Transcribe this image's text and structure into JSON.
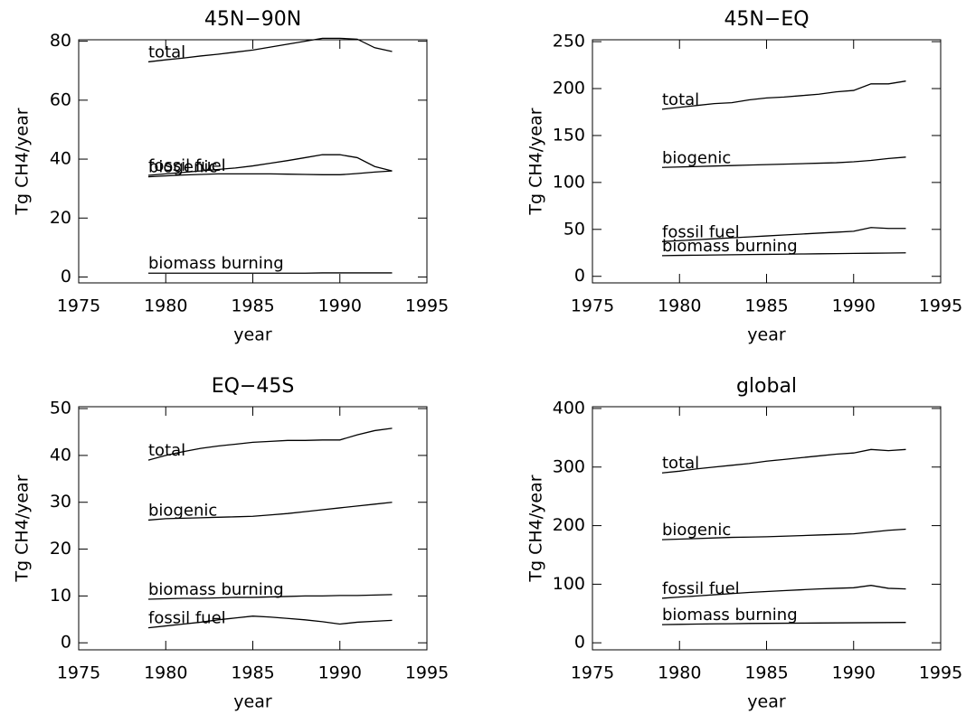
{
  "chart_data": [
    {
      "type": "line",
      "title": "45N−90N",
      "xlabel": "year",
      "ylabel": "Tg CH4/year",
      "x": [
        1979,
        1980,
        1981,
        1982,
        1983,
        1984,
        1985,
        1986,
        1987,
        1988,
        1989,
        1990,
        1991,
        1992,
        1993
      ],
      "xlim": [
        1975,
        1995
      ],
      "xticks": [
        1975,
        1980,
        1985,
        1990,
        1995
      ],
      "ylim": [
        -2,
        80.5
      ],
      "yticks": [
        0,
        20,
        40,
        60,
        80
      ],
      "series": [
        {
          "name": "total",
          "color": "#000000",
          "values": [
            73,
            73.7,
            74.3,
            75,
            75.6,
            76.3,
            77,
            78,
            79,
            80,
            81,
            81,
            80.7,
            77.8,
            76.5
          ]
        },
        {
          "name": "fossil fuel",
          "color": "#000000",
          "values": [
            34.5,
            35,
            35.5,
            36,
            36.5,
            37,
            37.7,
            38.6,
            39.5,
            40.5,
            41.5,
            41.5,
            40.5,
            37.5,
            36
          ]
        },
        {
          "name": "biogenic",
          "color": "#000000",
          "values": [
            34,
            34.3,
            34.6,
            34.8,
            35,
            35,
            35,
            35,
            34.9,
            34.8,
            34.7,
            34.7,
            35.1,
            35.6,
            36
          ]
        },
        {
          "name": "biomass burning",
          "color": "#000000",
          "values": [
            1.3,
            1.3,
            1.3,
            1.3,
            1.3,
            1.3,
            1.3,
            1.3,
            1.3,
            1.3,
            1.4,
            1.4,
            1.4,
            1.4,
            1.4
          ]
        }
      ]
    },
    {
      "type": "line",
      "title": "45N−EQ",
      "xlabel": "year",
      "ylabel": "Tg CH4/year",
      "x": [
        1979,
        1980,
        1981,
        1982,
        1983,
        1984,
        1985,
        1986,
        1987,
        1988,
        1989,
        1990,
        1991,
        1992,
        1993
      ],
      "xlim": [
        1975,
        1995
      ],
      "xticks": [
        1975,
        1980,
        1985,
        1990,
        1995
      ],
      "ylim": [
        -7,
        252
      ],
      "yticks": [
        0,
        50,
        100,
        150,
        200,
        250
      ],
      "series": [
        {
          "name": "total",
          "color": "#000000",
          "values": [
            178,
            180,
            182,
            184,
            185,
            188,
            190,
            191,
            192.5,
            194,
            196.5,
            198,
            205,
            205,
            208
          ]
        },
        {
          "name": "biogenic",
          "color": "#000000",
          "values": [
            116,
            116.5,
            117,
            117.5,
            118,
            118.5,
            119,
            119.5,
            120,
            120.5,
            121,
            122,
            123.5,
            125.5,
            127
          ]
        },
        {
          "name": "fossil fuel",
          "color": "#000000",
          "values": [
            37,
            38,
            39,
            40,
            41,
            42,
            43,
            44,
            45,
            46,
            47,
            48,
            52,
            51,
            51
          ]
        },
        {
          "name": "biomass burning",
          "color": "#000000",
          "values": [
            22,
            22.3,
            22.5,
            22.7,
            23,
            23.2,
            23.4,
            23.6,
            23.8,
            24,
            24.2,
            24.4,
            24.6,
            24.8,
            25
          ]
        }
      ]
    },
    {
      "type": "line",
      "title": "EQ−45S",
      "xlabel": "year",
      "ylabel": "Tg CH4/year",
      "x": [
        1979,
        1980,
        1981,
        1982,
        1983,
        1984,
        1985,
        1986,
        1987,
        1988,
        1989,
        1990,
        1991,
        1992,
        1993
      ],
      "xlim": [
        1975,
        1995
      ],
      "xticks": [
        1975,
        1980,
        1985,
        1990,
        1995
      ],
      "ylim": [
        -1.5,
        50.4
      ],
      "yticks": [
        0,
        10,
        20,
        30,
        40,
        50
      ],
      "series": [
        {
          "name": "total",
          "color": "#000000",
          "values": [
            39,
            40,
            40.8,
            41.5,
            42,
            42.4,
            42.8,
            43,
            43.2,
            43.2,
            43.3,
            43.3,
            44.4,
            45.3,
            45.8
          ]
        },
        {
          "name": "biogenic",
          "color": "#000000",
          "values": [
            26.2,
            26.5,
            26.6,
            26.7,
            26.8,
            26.9,
            27,
            27.3,
            27.6,
            28,
            28.4,
            28.8,
            29.2,
            29.6,
            30
          ]
        },
        {
          "name": "biomass burning",
          "color": "#000000",
          "values": [
            9.3,
            9.4,
            9.5,
            9.5,
            9.6,
            9.7,
            9.7,
            9.8,
            9.9,
            10,
            10,
            10.1,
            10.1,
            10.2,
            10.3
          ]
        },
        {
          "name": "fossil fuel",
          "color": "#000000",
          "values": [
            3.2,
            3.6,
            4,
            4.4,
            4.9,
            5.3,
            5.7,
            5.5,
            5.2,
            4.9,
            4.5,
            4,
            4.4,
            4.6,
            4.8
          ]
        }
      ]
    },
    {
      "type": "line",
      "title": "global",
      "xlabel": "year",
      "ylabel": "Tg CH4/year",
      "x": [
        1979,
        1980,
        1981,
        1982,
        1983,
        1984,
        1985,
        1986,
        1987,
        1988,
        1989,
        1990,
        1991,
        1992,
        1993
      ],
      "xlim": [
        1975,
        1995
      ],
      "xticks": [
        1975,
        1980,
        1985,
        1990,
        1995
      ],
      "ylim": [
        -12,
        403
      ],
      "yticks": [
        0,
        100,
        200,
        300,
        400
      ],
      "series": [
        {
          "name": "total",
          "color": "#000000",
          "values": [
            290,
            293,
            297,
            300,
            303,
            306,
            310,
            313,
            316,
            319,
            322,
            324,
            330,
            328,
            330
          ]
        },
        {
          "name": "biogenic",
          "color": "#000000",
          "values": [
            176,
            177,
            178,
            179,
            180,
            180.5,
            181,
            182,
            183,
            184,
            185,
            186,
            189,
            192,
            194
          ]
        },
        {
          "name": "fossil fuel",
          "color": "#000000",
          "values": [
            76,
            78,
            80,
            82,
            84,
            86,
            87.5,
            89,
            90.5,
            92,
            93,
            94,
            98,
            93,
            92
          ]
        },
        {
          "name": "biomass burning",
          "color": "#000000",
          "values": [
            31,
            31.5,
            32,
            32.3,
            32.6,
            33,
            33.2,
            33.4,
            33.6,
            33.8,
            34,
            34.2,
            34.4,
            34.6,
            34.8
          ]
        }
      ]
    }
  ]
}
